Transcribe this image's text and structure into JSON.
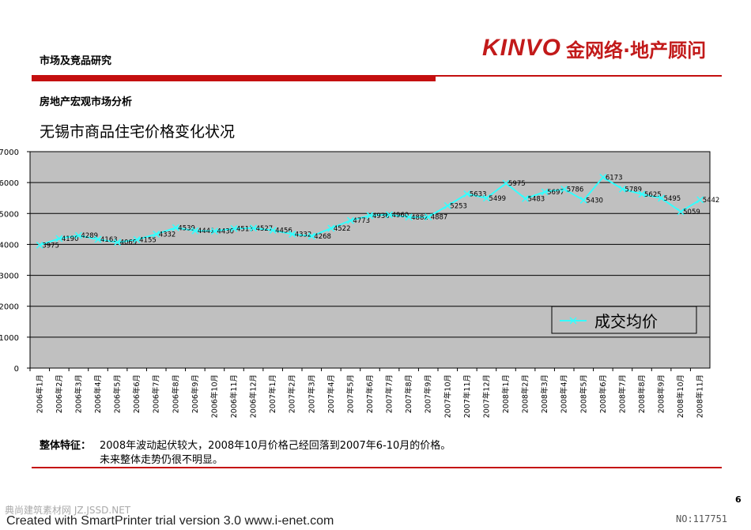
{
  "header": {
    "section_title": "市场及竞品研究",
    "logo_brand": "KINVO",
    "logo_sub": "金网络·地产顾问",
    "subsection_title": "房地产宏观市场分析"
  },
  "colors": {
    "accent": "#c40f0f",
    "plot_bg": "#c0c0c0",
    "line": "#33ffff"
  },
  "chart_data": {
    "type": "line",
    "title": "无锡市商品住宅价格变化状况",
    "xlabel": "",
    "ylabel": "",
    "ylim": [
      0,
      7000
    ],
    "yticks": [
      "0",
      "1000",
      "2000",
      "3000",
      "4000",
      "5000",
      "6000",
      "7000"
    ],
    "grid": true,
    "legend_position": "bottom-right",
    "categories": [
      "2006年1月",
      "2006年2月",
      "2006年3月",
      "2006年4月",
      "2006年5月",
      "2006年6月",
      "2006年7月",
      "2006年8月",
      "2006年9月",
      "2006年10月",
      "2006年11月",
      "2006年12月",
      "2007年1月",
      "2007年2月",
      "2007年3月",
      "2007年4月",
      "2007年5月",
      "2007年6月",
      "2007年7月",
      "2007年8月",
      "2007年9月",
      "2007年10月",
      "2007年11月",
      "2007年12月",
      "2008年1月",
      "2008年2月",
      "2008年3月",
      "2008年4月",
      "2008年5月",
      "2008年6月",
      "2008年7月",
      "2008年8月",
      "2008年9月",
      "2008年10月",
      "2008年11月"
    ],
    "series": [
      {
        "name": "成交均价",
        "values": [
          3975,
          4190,
          4289,
          4163,
          4069,
          4155,
          4332,
          4539,
          4441,
          4430,
          4513,
          4527,
          4456,
          4332,
          4268,
          4522,
          4773,
          4936,
          4960,
          4882,
          4887,
          5253,
          5633,
          5499,
          5975,
          5483,
          5697,
          5786,
          5430,
          6173,
          5789,
          5625,
          5495,
          5059,
          5442
        ]
      }
    ]
  },
  "note": {
    "label": "整体特征：",
    "line1": "2008年波动起伏较大，2008年10月价格己经回落到2007年6-10月的价格。",
    "line2": "未来整体走势仍很不明显。"
  },
  "footer": {
    "page_number": "6",
    "watermark_left": "典尚建筑素材网 JZ.JSSD.NET",
    "watermark_id": "NO:117751",
    "credit": "Created with SmartPrinter trial version 3.0  www.i-enet.com"
  }
}
